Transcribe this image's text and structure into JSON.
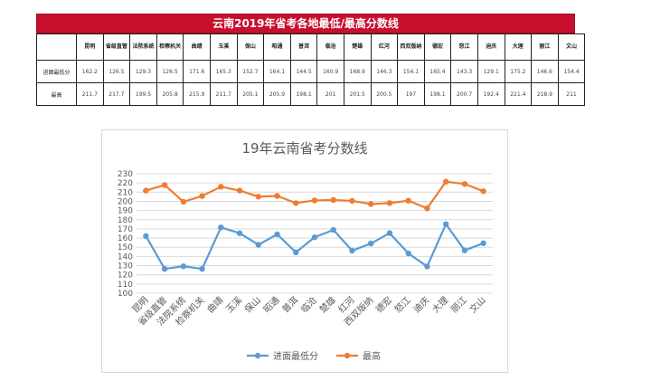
{
  "table": {
    "title": "云南2019年省考各地最低/最高分数线",
    "header": [
      "",
      "昆明",
      "省级直管",
      "法院系统",
      "检察机关",
      "曲靖",
      "玉溪",
      "保山",
      "昭通",
      "普洱",
      "临沧",
      "楚雄",
      "红河",
      "西双版纳",
      "德宏",
      "怒江",
      "迪庆",
      "大理",
      "丽江",
      "文山"
    ],
    "rows": [
      {
        "label": "进面最低分",
        "cells": [
          "162.2",
          "126.5",
          "129.3",
          "126.5",
          "171.6",
          "165.3",
          "152.7",
          "164.1",
          "144.5",
          "160.9",
          "168.9",
          "146.3",
          "154.1",
          "165.4",
          "143.3",
          "129.1",
          "175.2",
          "146.6",
          "154.4"
        ]
      },
      {
        "label": "最高",
        "cells": [
          "211.7",
          "217.7",
          "199.5",
          "205.8",
          "215.9",
          "211.7",
          "205.1",
          "205.9",
          "198.1",
          "201",
          "201.5",
          "200.5",
          "197",
          "198.1",
          "200.7",
          "192.4",
          "221.4",
          "218.9",
          "211"
        ]
      }
    ]
  },
  "chart_data": {
    "type": "line",
    "title": "19年云南省考分数线",
    "categories": [
      "昆明",
      "省级直管",
      "法院系统",
      "检察机关",
      "曲靖",
      "玉溪",
      "保山",
      "昭通",
      "普洱",
      "临沧",
      "楚雄",
      "红河",
      "西双版纳",
      "德宏",
      "怒江",
      "迪庆",
      "大理",
      "丽江",
      "文山"
    ],
    "series": [
      {
        "name": "进面最低分",
        "color": "#5b9bd5",
        "values": [
          162.2,
          126.5,
          129.3,
          126.5,
          171.6,
          165.3,
          152.7,
          164.1,
          144.5,
          160.9,
          168.9,
          146.3,
          154.1,
          165.4,
          143.3,
          129.1,
          175.2,
          146.6,
          154.4
        ]
      },
      {
        "name": "最高",
        "color": "#ed7d31",
        "values": [
          211.7,
          217.7,
          199.5,
          205.8,
          215.9,
          211.7,
          205.1,
          205.9,
          198.1,
          201,
          201.5,
          200.5,
          197,
          198.1,
          200.7,
          192.4,
          221.4,
          218.9,
          211
        ]
      }
    ],
    "ylim": [
      100,
      230
    ],
    "yticks": [
      100,
      110,
      120,
      130,
      140,
      150,
      160,
      170,
      180,
      190,
      200,
      210,
      220,
      230
    ],
    "grid": true,
    "legend_position": "bottom"
  }
}
